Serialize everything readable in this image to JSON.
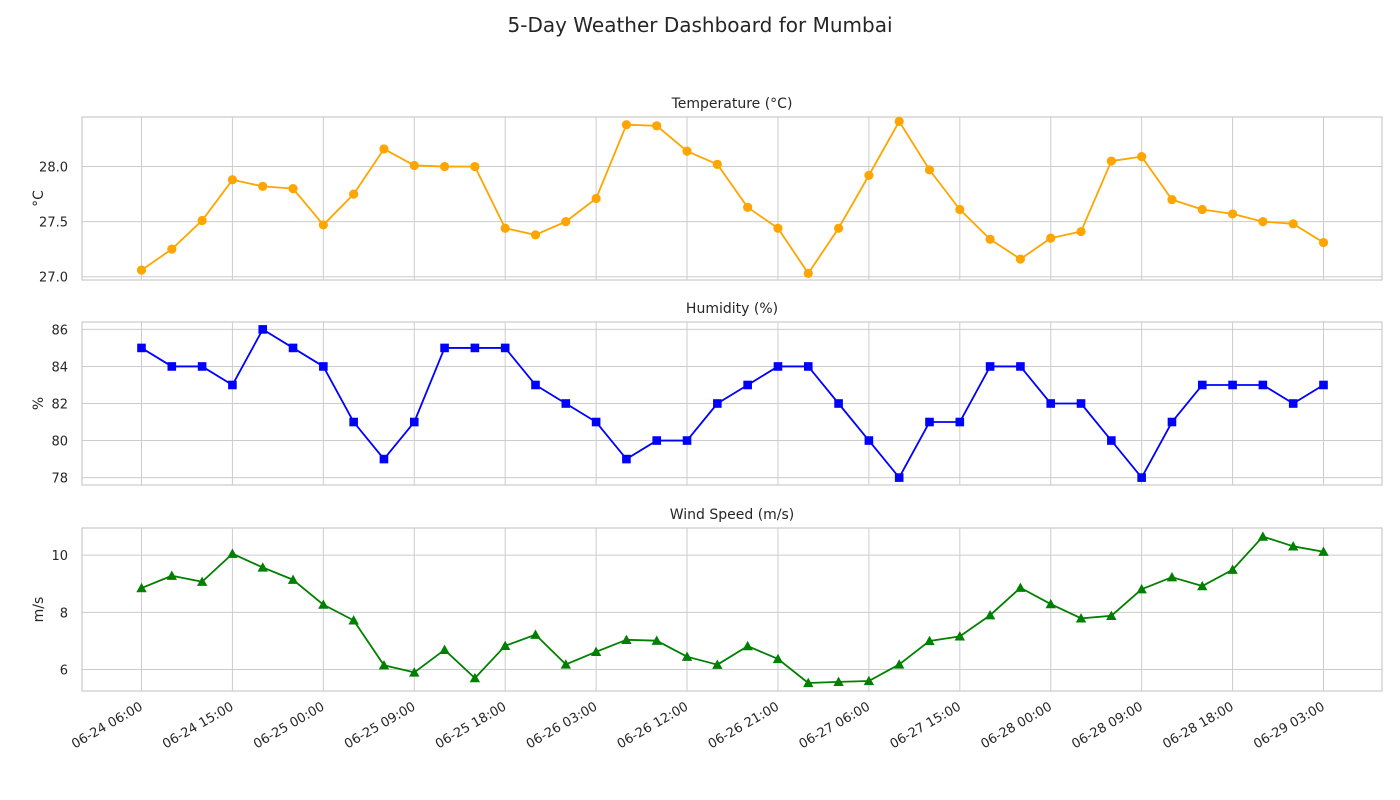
{
  "chart_data": {
    "type": "line",
    "title": "5-Day Weather Dashboard for Mumbai",
    "x": [
      "06-24 06:00",
      "06-24 09:00",
      "06-24 12:00",
      "06-24 15:00",
      "06-24 18:00",
      "06-24 21:00",
      "06-25 00:00",
      "06-25 03:00",
      "06-25 06:00",
      "06-25 09:00",
      "06-25 12:00",
      "06-25 15:00",
      "06-25 18:00",
      "06-25 21:00",
      "06-26 00:00",
      "06-26 03:00",
      "06-26 06:00",
      "06-26 09:00",
      "06-26 12:00",
      "06-26 15:00",
      "06-26 18:00",
      "06-26 21:00",
      "06-27 00:00",
      "06-27 03:00",
      "06-27 06:00",
      "06-27 09:00",
      "06-27 12:00",
      "06-27 15:00",
      "06-27 18:00",
      "06-27 21:00",
      "06-28 00:00",
      "06-28 03:00",
      "06-28 06:00",
      "06-28 09:00",
      "06-28 12:00",
      "06-28 15:00",
      "06-28 18:00",
      "06-28 21:00",
      "06-29 00:00",
      "06-29 03:00"
    ],
    "xticks": [
      "06-24 06:00",
      "06-24 15:00",
      "06-25 00:00",
      "06-25 09:00",
      "06-25 18:00",
      "06-26 03:00",
      "06-26 12:00",
      "06-26 21:00",
      "06-27 06:00",
      "06-27 15:00",
      "06-28 00:00",
      "06-28 09:00",
      "06-28 18:00",
      "06-29 03:00"
    ],
    "grid": true,
    "panels": [
      {
        "title": "Temperature (°C)",
        "ylabel": "°C",
        "color": "#ffa500",
        "marker": "circle",
        "ylim": [
          26.97,
          28.45
        ],
        "yticks": [
          27.0,
          27.5,
          28.0
        ],
        "ytick_labels": [
          "27.0",
          "27.5",
          "28.0"
        ],
        "values": [
          27.06,
          27.25,
          27.51,
          27.88,
          27.82,
          27.8,
          27.47,
          27.75,
          28.16,
          28.01,
          28.0,
          28.0,
          27.44,
          27.38,
          27.5,
          27.71,
          28.38,
          28.37,
          28.14,
          28.02,
          27.63,
          27.44,
          27.03,
          27.44,
          27.92,
          28.41,
          27.97,
          27.61,
          27.34,
          27.16,
          27.35,
          27.41,
          28.05,
          28.09,
          27.7,
          27.61,
          27.57,
          27.5,
          27.48,
          27.31
        ]
      },
      {
        "title": "Humidity (%)",
        "ylabel": "%",
        "color": "#0000ff",
        "marker": "square",
        "ylim": [
          77.6,
          86.4
        ],
        "yticks": [
          78,
          80,
          82,
          84,
          86
        ],
        "ytick_labels": [
          "78",
          "80",
          "82",
          "84",
          "86"
        ],
        "values": [
          85,
          84,
          84,
          83,
          86,
          85,
          84,
          81,
          79,
          81,
          85,
          85,
          85,
          83,
          82,
          81,
          79,
          80,
          80,
          82,
          83,
          84,
          84,
          82,
          80,
          78,
          81,
          81,
          84,
          84,
          82,
          82,
          80,
          78,
          81,
          83,
          83,
          83,
          82,
          83
        ]
      },
      {
        "title": "Wind Speed (m/s)",
        "ylabel": "m/s",
        "color": "#008000",
        "marker": "triangle",
        "ylim": [
          5.25,
          10.95
        ],
        "yticks": [
          6,
          8,
          10
        ],
        "ytick_labels": [
          "6",
          "8",
          "10"
        ],
        "values": [
          8.85,
          9.28,
          9.07,
          10.05,
          9.57,
          9.14,
          8.27,
          7.72,
          6.15,
          5.9,
          6.69,
          5.7,
          6.83,
          7.22,
          6.18,
          6.62,
          7.04,
          7.01,
          6.45,
          6.17,
          6.82,
          6.37,
          5.53,
          5.57,
          5.6,
          6.18,
          7.0,
          7.16,
          7.9,
          8.86,
          8.29,
          7.79,
          7.88,
          8.81,
          9.23,
          8.92,
          9.49,
          10.65,
          10.31,
          10.12
        ]
      }
    ]
  }
}
